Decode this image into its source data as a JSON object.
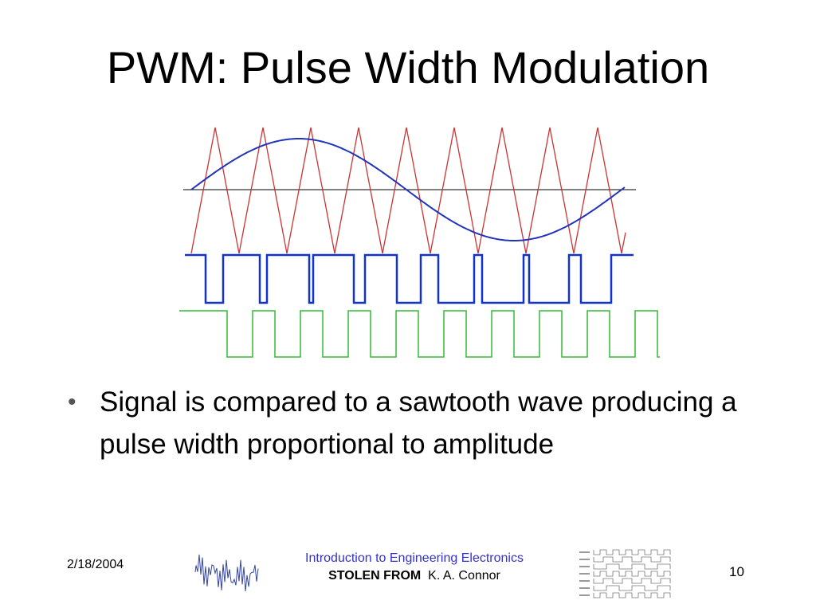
{
  "slide": {
    "title": "PWM: Pulse Width Modulation",
    "bullets": [
      "Signal is compared to a sawtooth wave producing a pulse width proportional to amplitude"
    ],
    "footer": {
      "date": "2/18/2004",
      "course": "Introduction to Engineering Electronics",
      "credit_label": "STOLEN FROM",
      "credit_name": "K. A. Connor",
      "page": "10"
    }
  }
}
